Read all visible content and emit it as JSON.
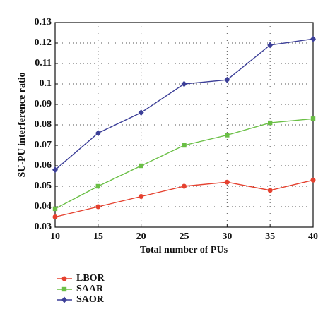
{
  "chart_data": {
    "type": "line",
    "x_label": "Total number of PUs",
    "y_label": "SU-PU interference ratio",
    "x": [
      10,
      15,
      20,
      25,
      30,
      35,
      40
    ],
    "series": [
      {
        "name": "LBOR",
        "color": "#e5412f",
        "marker": "circle",
        "values": [
          0.035,
          0.04,
          0.045,
          0.05,
          0.052,
          0.048,
          0.053
        ]
      },
      {
        "name": "SAAR",
        "color": "#6abf45",
        "marker": "square",
        "values": [
          0.039,
          0.05,
          0.06,
          0.07,
          0.075,
          0.081,
          0.083
        ]
      },
      {
        "name": "SAOR",
        "color": "#3c3f98",
        "marker": "diamond",
        "values": [
          0.058,
          0.076,
          0.086,
          0.1,
          0.102,
          0.119,
          0.122
        ]
      }
    ],
    "xlim": [
      10,
      40
    ],
    "xticks": [
      10,
      15,
      20,
      25,
      30,
      35,
      40
    ],
    "ylim": [
      0.03,
      0.13
    ],
    "yticks": [
      0.03,
      0.04,
      0.05,
      0.06,
      0.07,
      0.08,
      0.09,
      0.1,
      0.11,
      0.12,
      0.13
    ],
    "grid": true
  }
}
